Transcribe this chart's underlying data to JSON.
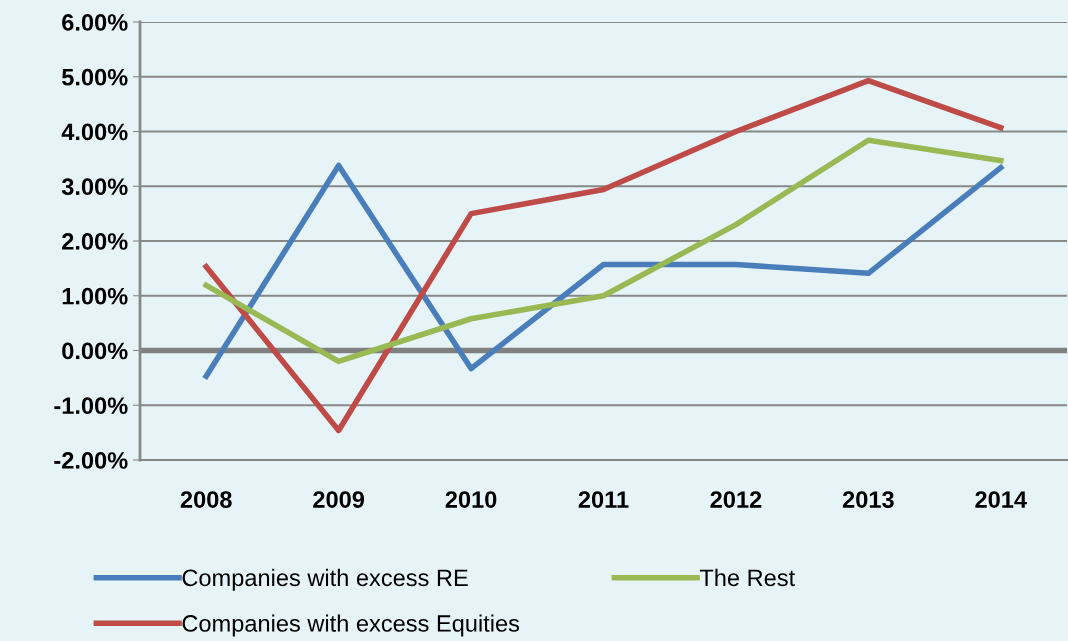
{
  "chart_data": {
    "type": "line",
    "categories": [
      "2008",
      "2009",
      "2010",
      "2011",
      "2012",
      "2013",
      "2014"
    ],
    "series": [
      {
        "name": "Companies with excess RE",
        "color": "#4a7ebb",
        "values": [
          -0.47,
          3.38,
          -0.33,
          1.57,
          1.57,
          1.41,
          3.34
        ]
      },
      {
        "name": "Companies with excess Equities",
        "color": "#be4b48",
        "values": [
          1.53,
          -1.46,
          2.5,
          2.94,
          4.0,
          4.93,
          4.07
        ]
      },
      {
        "name": "The Rest",
        "color": "#98b954",
        "values": [
          1.19,
          -0.2,
          0.58,
          1.0,
          2.3,
          3.84,
          3.47
        ]
      }
    ],
    "ylim": [
      -2,
      6
    ],
    "yticks": [
      {
        "value": -2,
        "label": "-2.00%"
      },
      {
        "value": -1,
        "label": "-1.00%"
      },
      {
        "value": 0,
        "label": "0.00%"
      },
      {
        "value": 1,
        "label": "1.00%"
      },
      {
        "value": 2,
        "label": "2.00%"
      },
      {
        "value": 3,
        "label": "3.00%"
      },
      {
        "value": 4,
        "label": "4.00%"
      },
      {
        "value": 5,
        "label": "5.00%"
      },
      {
        "value": 6,
        "label": "6.00%"
      }
    ],
    "ref_lines": [
      {
        "axis": "y",
        "value": 0,
        "color": "#808080"
      }
    ],
    "grid": "y",
    "legend": "bottom",
    "marker": "none",
    "line_style": "solid"
  }
}
